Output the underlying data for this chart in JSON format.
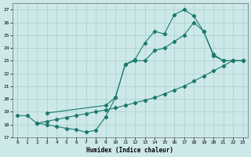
{
  "xlabel": "Humidex (Indice chaleur)",
  "background_color": "#cde8e8",
  "grid_color": "#aacfcf",
  "line_color": "#1a7a6e",
  "xlim": [
    -0.5,
    23.5
  ],
  "ylim": [
    17,
    27.5
  ],
  "yticks": [
    17,
    18,
    19,
    20,
    21,
    22,
    23,
    24,
    25,
    26,
    27
  ],
  "xticks": [
    0,
    1,
    2,
    3,
    4,
    5,
    6,
    7,
    8,
    9,
    10,
    11,
    12,
    13,
    14,
    15,
    16,
    17,
    18,
    19,
    20,
    21,
    22,
    23
  ],
  "line1_x": [
    0,
    1,
    2,
    3,
    4,
    5,
    6,
    7,
    8,
    9,
    10,
    11,
    12,
    13,
    14,
    15,
    16,
    17,
    18,
    19,
    20,
    21,
    22,
    23
  ],
  "line1_y": [
    18.7,
    18.7,
    18.1,
    18.0,
    17.85,
    17.7,
    17.6,
    17.4,
    17.55,
    18.6,
    20.1,
    22.7,
    23.1,
    24.4,
    25.3,
    25.1,
    26.6,
    27.0,
    26.5,
    25.3,
    23.5,
    23.0,
    23.0,
    23.0
  ],
  "line2_x": [
    2,
    3,
    4,
    5,
    6,
    7,
    8,
    9,
    10,
    11,
    12,
    13,
    14,
    15,
    16,
    17,
    18,
    19,
    20,
    21,
    22,
    23
  ],
  "line2_y": [
    18.1,
    18.25,
    18.4,
    18.55,
    18.7,
    18.85,
    19.0,
    19.15,
    19.3,
    19.5,
    19.7,
    19.9,
    20.1,
    20.4,
    20.7,
    21.0,
    21.4,
    21.8,
    22.2,
    22.6,
    23.0,
    23.0
  ],
  "line3_x": [
    3,
    9,
    10,
    11,
    12,
    13,
    14,
    15,
    16,
    17,
    18,
    19,
    20,
    21,
    22,
    23
  ],
  "line3_y": [
    18.9,
    19.5,
    20.1,
    22.7,
    23.0,
    23.0,
    23.8,
    24.0,
    24.5,
    25.0,
    26.0,
    25.3,
    23.4,
    23.0,
    23.0,
    23.0
  ]
}
